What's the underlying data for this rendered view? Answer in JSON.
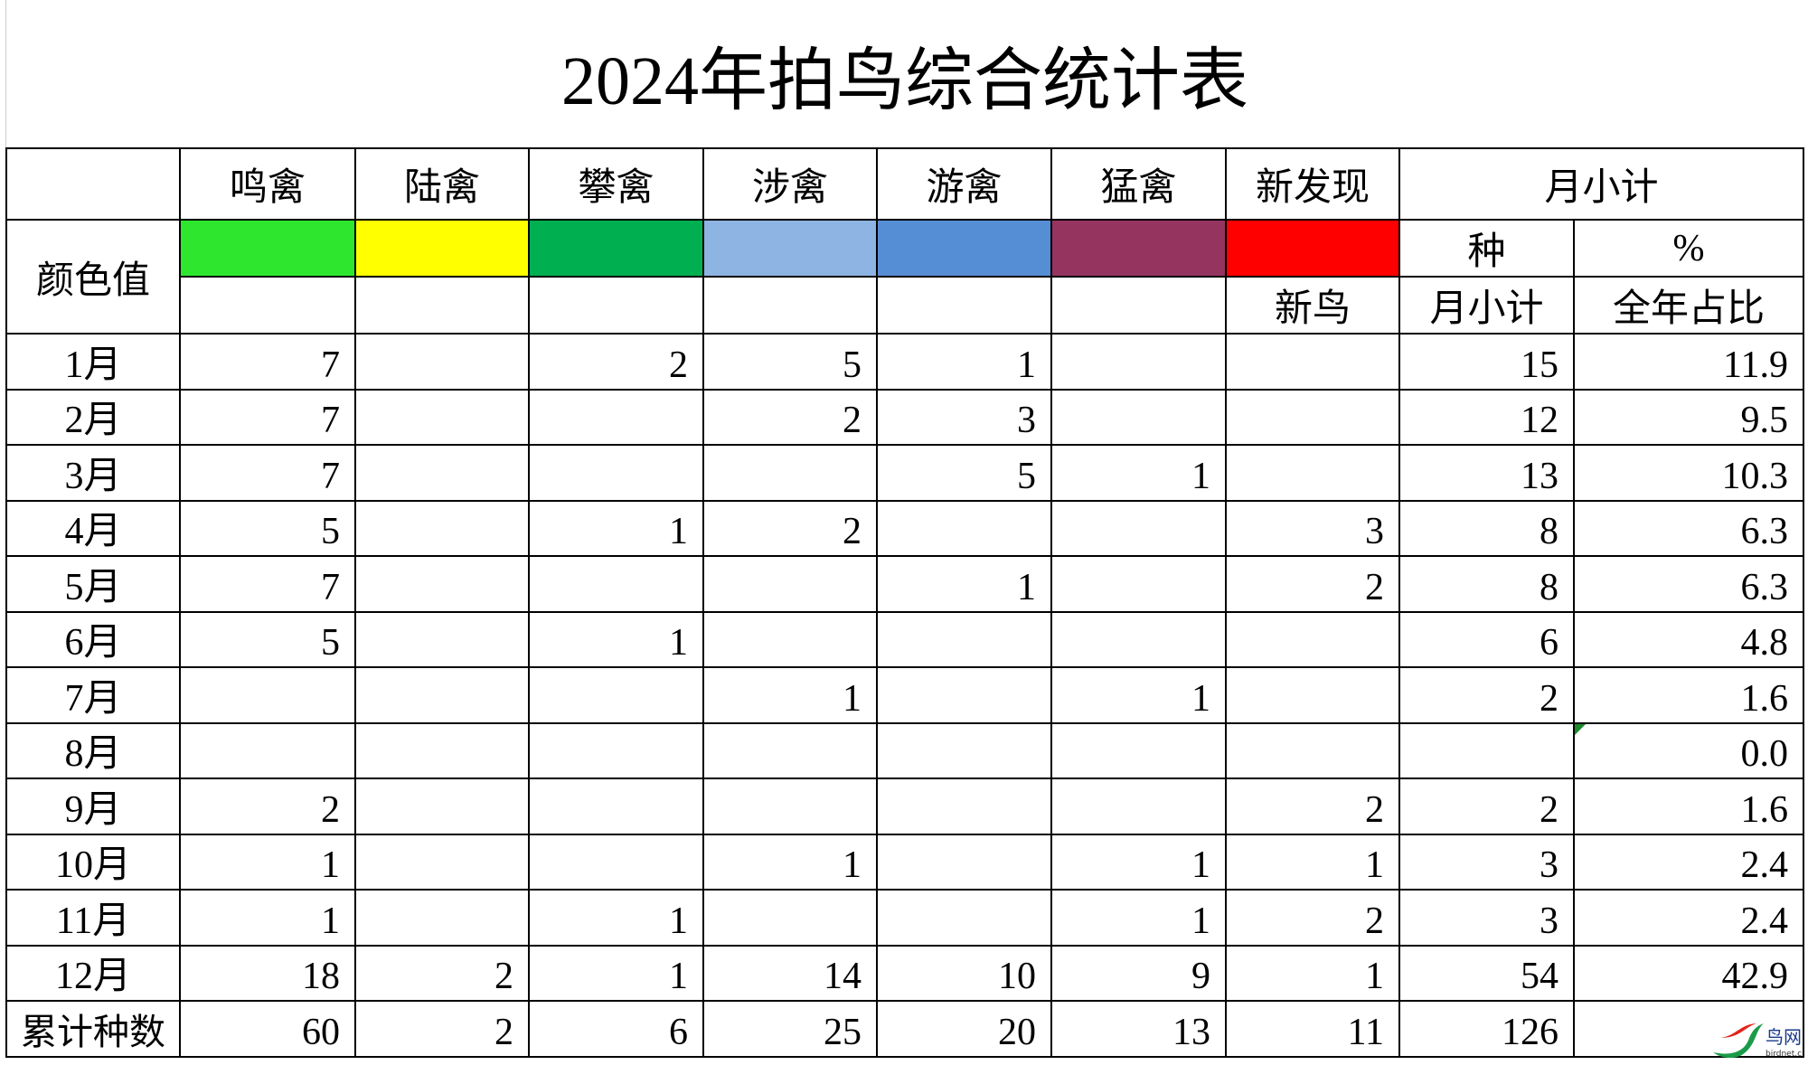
{
  "title": "2024年拍鸟综合统计表",
  "header": {
    "color_label": "颜色值",
    "categories": [
      {
        "label": "鸣禽",
        "color": "#2ee62e"
      },
      {
        "label": "陆禽",
        "color": "#ffff00"
      },
      {
        "label": "攀禽",
        "color": "#00b050"
      },
      {
        "label": "涉禽",
        "color": "#8db4e2"
      },
      {
        "label": "游禽",
        "color": "#558ed5"
      },
      {
        "label": "猛禽",
        "color": "#963460"
      },
      {
        "label": "新发现",
        "color": "#ff0000"
      }
    ],
    "monthly_subtotal": "月小计",
    "species": "种",
    "percent": "%",
    "new_bird": "新鸟",
    "species_subtotal": "月小计",
    "year_share": "全年占比"
  },
  "rows": [
    {
      "month": "1月",
      "v": [
        "7",
        "",
        "2",
        "5",
        "1",
        "",
        ""
      ],
      "total": "15",
      "pct": "11.9"
    },
    {
      "month": "2月",
      "v": [
        "7",
        "",
        "",
        "2",
        "3",
        "",
        ""
      ],
      "total": "12",
      "pct": "9.5"
    },
    {
      "month": "3月",
      "v": [
        "7",
        "",
        "",
        "",
        "5",
        "1",
        ""
      ],
      "total": "13",
      "pct": "10.3"
    },
    {
      "month": "4月",
      "v": [
        "5",
        "",
        "1",
        "2",
        "",
        "",
        "3"
      ],
      "total": "8",
      "pct": "6.3"
    },
    {
      "month": "5月",
      "v": [
        "7",
        "",
        "",
        "",
        "1",
        "",
        "2"
      ],
      "total": "8",
      "pct": "6.3"
    },
    {
      "month": "6月",
      "v": [
        "5",
        "",
        "1",
        "",
        "",
        "",
        ""
      ],
      "total": "6",
      "pct": "4.8"
    },
    {
      "month": "7月",
      "v": [
        "",
        "",
        "",
        "1",
        "",
        "1",
        ""
      ],
      "total": "2",
      "pct": "1.6"
    },
    {
      "month": "8月",
      "v": [
        "",
        "",
        "",
        "",
        "",
        "",
        ""
      ],
      "total": "",
      "pct": "0.0"
    },
    {
      "month": "9月",
      "v": [
        "2",
        "",
        "",
        "",
        "",
        "",
        "2"
      ],
      "total": "2",
      "pct": "1.6"
    },
    {
      "month": "10月",
      "v": [
        "1",
        "",
        "",
        "1",
        "",
        "1",
        "1"
      ],
      "total": "3",
      "pct": "2.4"
    },
    {
      "month": "11月",
      "v": [
        "1",
        "",
        "1",
        "",
        "",
        "1",
        "2"
      ],
      "total": "3",
      "pct": "2.4"
    },
    {
      "month": "12月",
      "v": [
        "18",
        "2",
        "1",
        "14",
        "10",
        "9",
        "1"
      ],
      "total": "54",
      "pct": "42.9"
    },
    {
      "month": "累计种数",
      "v": [
        "60",
        "2",
        "6",
        "25",
        "20",
        "13",
        "11"
      ],
      "total": "126",
      "pct": ""
    }
  ],
  "watermark": {
    "text": "鸟网",
    "sub": "birdnet.cn"
  }
}
